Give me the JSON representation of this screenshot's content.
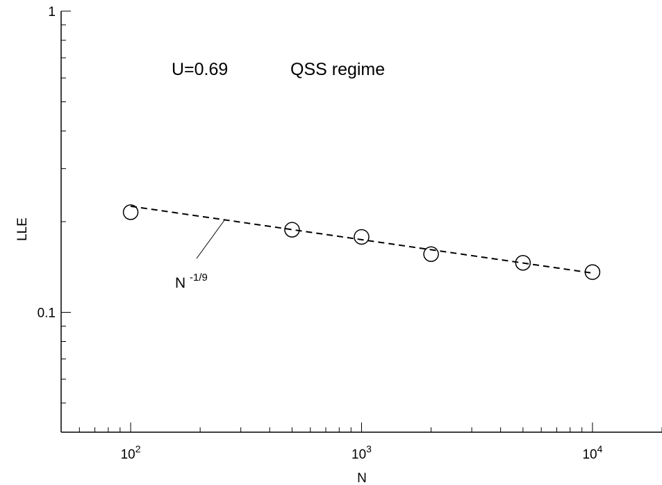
{
  "chart_data": {
    "type": "scatter",
    "title": "",
    "xlabel": "N",
    "ylabel": "LLE",
    "x_scale": "log",
    "y_scale": "log",
    "xlim": [
      50,
      20000
    ],
    "ylim": [
      0.04,
      1
    ],
    "grid": false,
    "x_tick_labels": [
      {
        "value": 100,
        "base": "10",
        "exp": "2"
      },
      {
        "value": 1000,
        "base": "10",
        "exp": "3"
      },
      {
        "value": 10000,
        "base": "10",
        "exp": "4"
      }
    ],
    "y_tick_labels": [
      {
        "value": 0.1,
        "label": "0.1"
      },
      {
        "value": 1,
        "label": "1"
      }
    ],
    "series": [
      {
        "marker": "open-circle",
        "x": [
          100,
          500,
          1000,
          2000,
          5000,
          10000
        ],
        "y": [
          0.215,
          0.188,
          0.178,
          0.156,
          0.146,
          0.136
        ]
      }
    ],
    "fit_line": {
      "style": "dashed",
      "x": [
        100,
        10000
      ],
      "y": [
        0.225,
        0.135
      ]
    },
    "annotations": {
      "params": "U=0.69",
      "regime": "QSS regime",
      "fit_label_base": "N",
      "fit_label_exp": "-1/9"
    }
  }
}
